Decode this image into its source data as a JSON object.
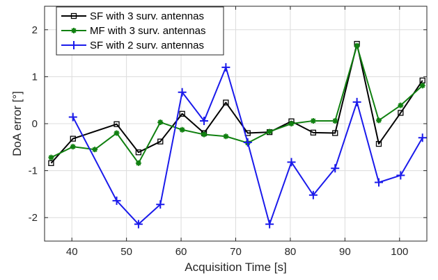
{
  "chart_data": {
    "type": "line",
    "xlabel": "Acquisition Time [s]",
    "ylabel": "DoA error [°]",
    "xlim": [
      35,
      105
    ],
    "ylim": [
      -2.5,
      2.5
    ],
    "xticks": [
      40,
      50,
      60,
      70,
      80,
      90,
      100
    ],
    "yticks": [
      -2,
      -1,
      0,
      1,
      2
    ],
    "grid": true,
    "legend_position": "top-left",
    "series": [
      {
        "name": "SF with 3 surv. antennas",
        "color": "#000000",
        "marker": "square",
        "x": [
          36.2,
          40.2,
          48.2,
          52.2,
          56.2,
          60.2,
          64.2,
          68.2,
          72.2,
          76.2,
          80.2,
          84.2,
          88.2,
          92.2,
          96.2,
          100.2,
          104.2
        ],
        "y": [
          -0.84,
          -0.32,
          -0.01,
          -0.61,
          -0.38,
          0.21,
          -0.2,
          0.45,
          -0.2,
          -0.18,
          0.05,
          -0.19,
          -0.2,
          1.7,
          -0.43,
          0.23,
          0.92
        ]
      },
      {
        "name": "MF with 3 surv. antennas",
        "color": "#108010",
        "marker": "asterisk",
        "x": [
          36.2,
          40.2,
          44.2,
          48.2,
          52.2,
          56.2,
          60.2,
          64.2,
          68.2,
          72.2,
          76.2,
          80.2,
          84.2,
          88.2,
          92.2,
          96.2,
          100.2,
          104.2
        ],
        "y": [
          -0.72,
          -0.49,
          -0.55,
          -0.2,
          -0.84,
          0.03,
          -0.13,
          -0.23,
          -0.27,
          -0.41,
          -0.17,
          0.0,
          0.06,
          0.06,
          1.66,
          0.07,
          0.39,
          0.81
        ]
      },
      {
        "name": "SF with 2 surv. antennas",
        "color": "#1a1aeb",
        "marker": "plus",
        "x": [
          40.2,
          48.2,
          52.2,
          56.2,
          60.2,
          64.2,
          68.2,
          72.2,
          76.2,
          80.2,
          84.2,
          88.2,
          92.2,
          96.2,
          100.2,
          104.2
        ],
        "y": [
          0.14,
          -1.64,
          -2.14,
          -1.72,
          0.67,
          0.06,
          1.2,
          -0.4,
          -2.14,
          -0.82,
          -1.52,
          -0.95,
          0.46,
          -1.25,
          -1.1,
          -0.3
        ]
      }
    ]
  }
}
